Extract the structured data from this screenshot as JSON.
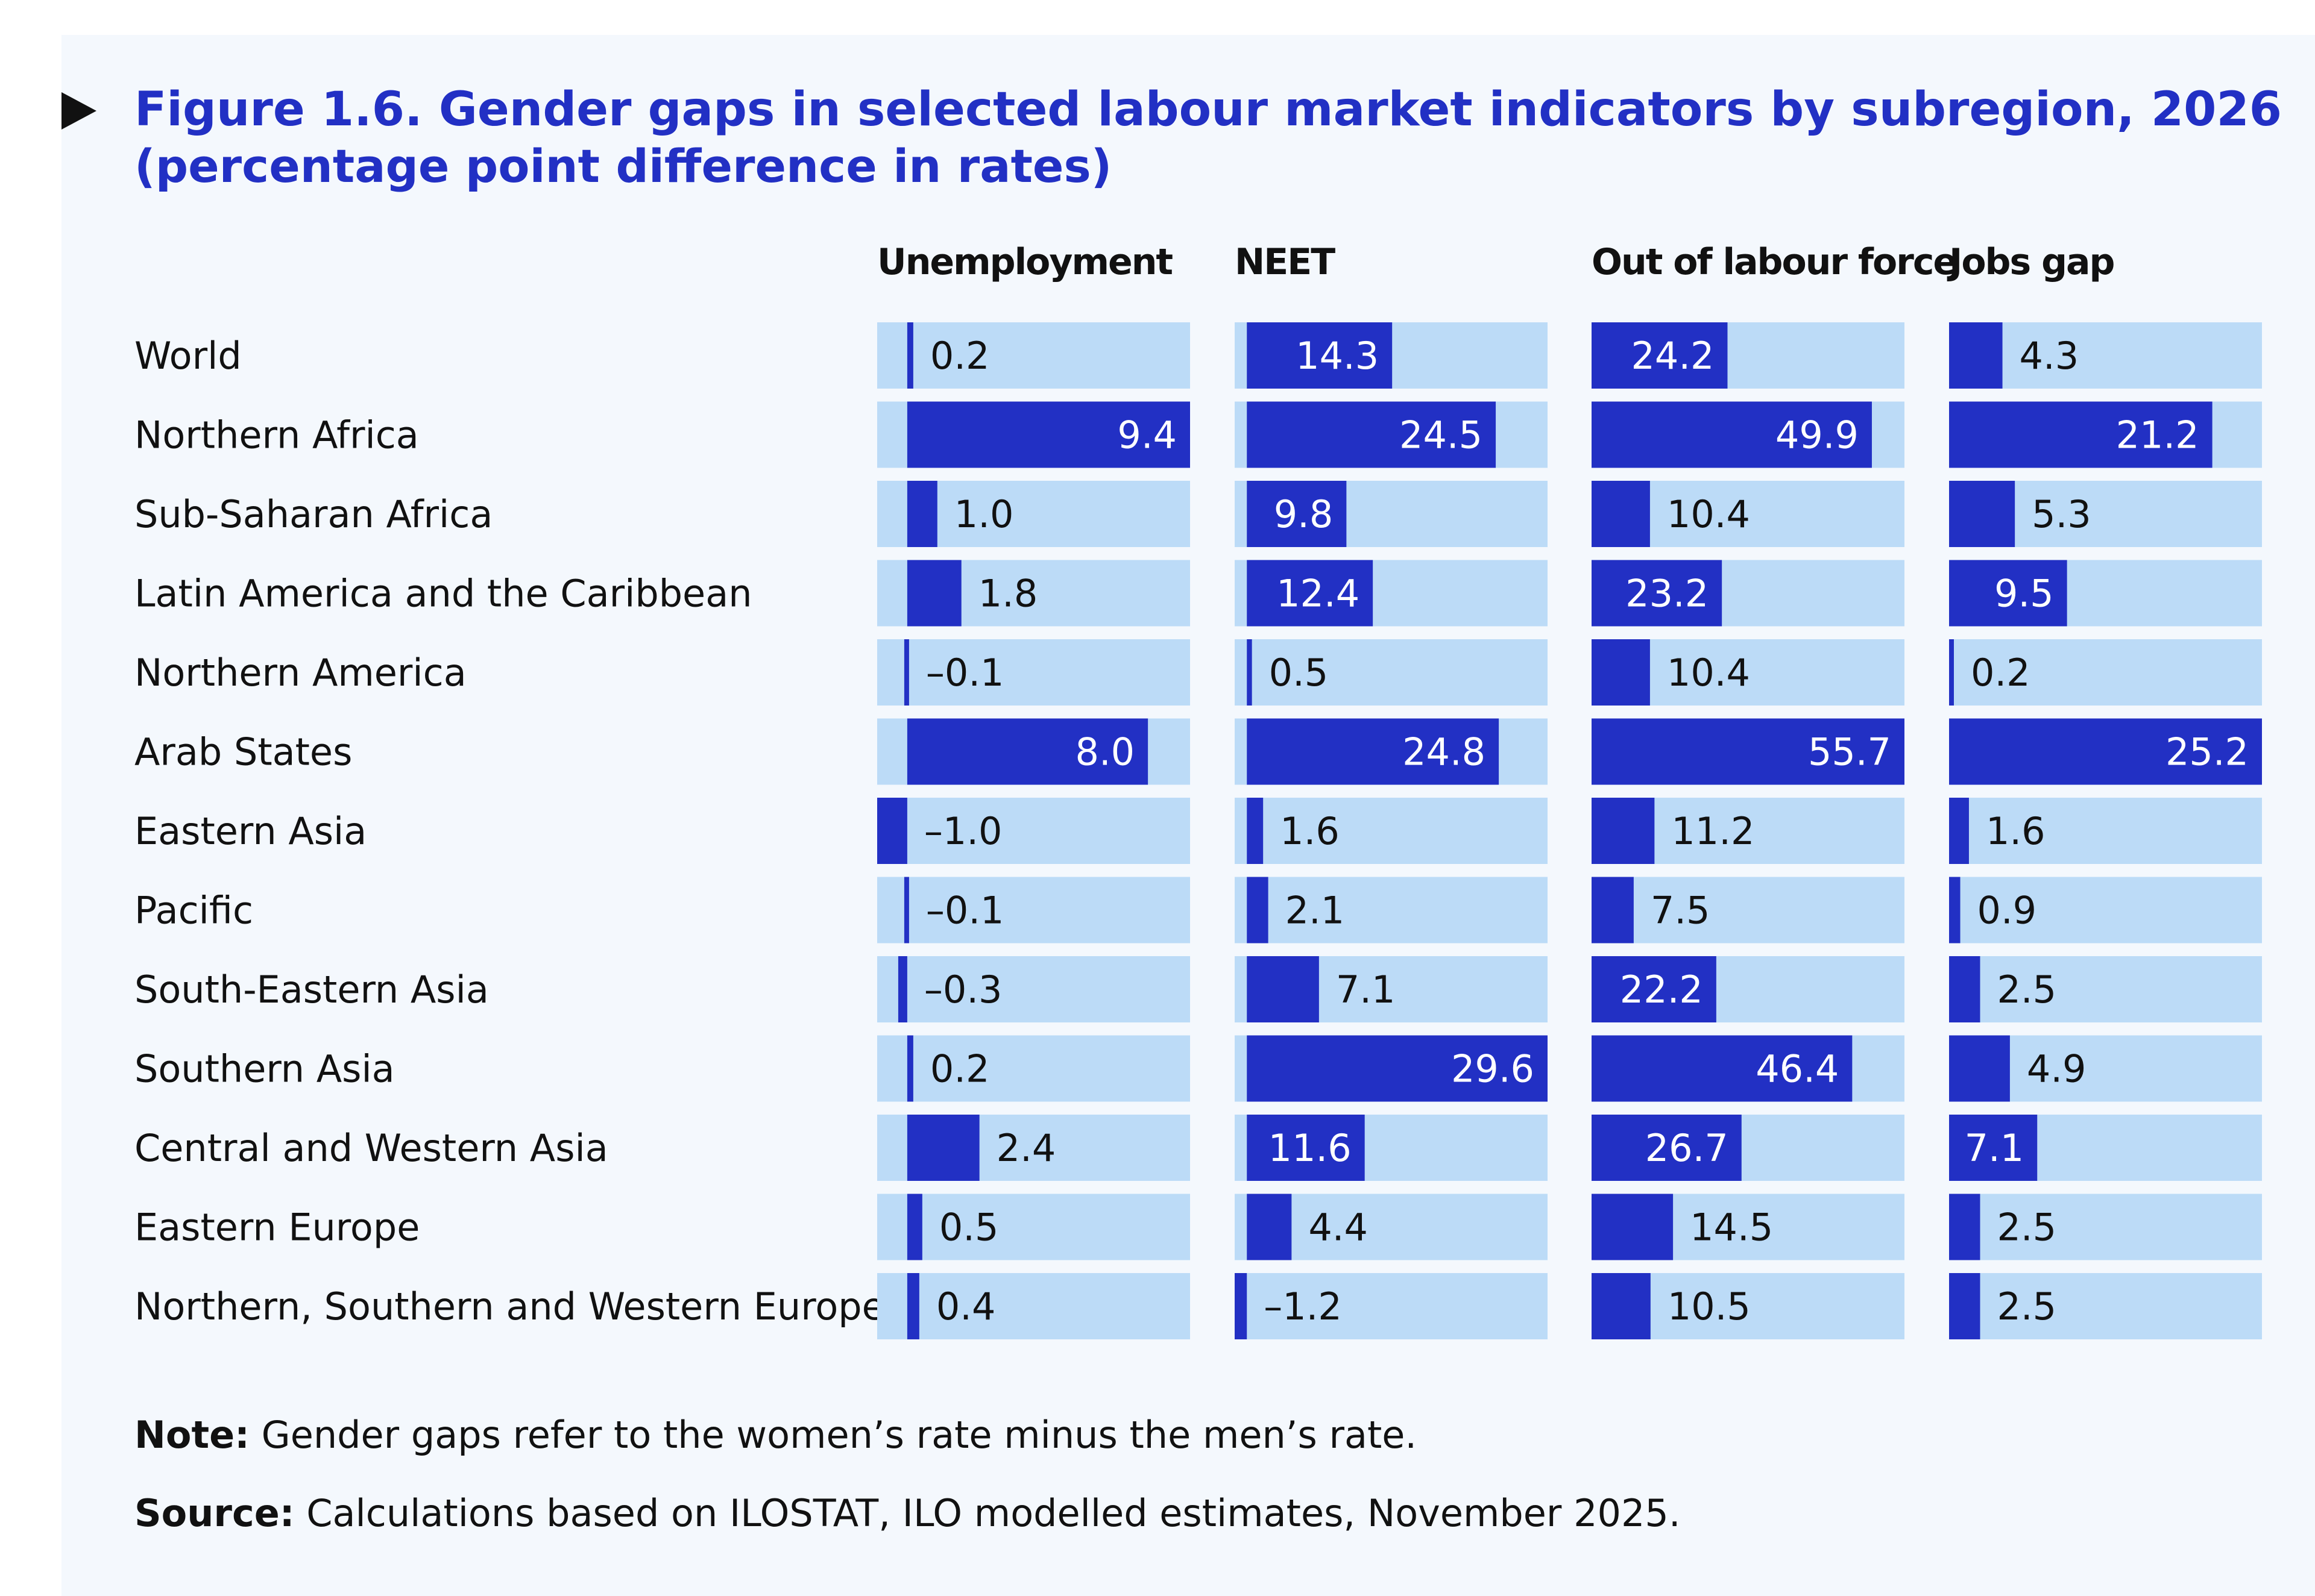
{
  "figure": {
    "title": "Figure 1.6. Gender gaps in selected labour market indicators by subregion, 2026",
    "subtitle": "(percentage point difference in rates)"
  },
  "notes": {
    "note_label": "Note:",
    "note_text": " Gender gaps refer to the women’s rate minus the men’s rate.",
    "source_label": "Source:",
    "source_text": " Calculations based on ILOSTAT, ILO modelled estimates, November 2025."
  },
  "colors": {
    "bar_fill": "#2230c4",
    "track_fill": "#bcdbf7",
    "title": "#2230c4",
    "text": "#111111",
    "label_on_bar": "#ffffff"
  },
  "chart_data": {
    "type": "bar",
    "orientation": "horizontal",
    "layout": "small-multiples",
    "title": "Figure 1.6. Gender gaps in selected labour market indicators by subregion, 2026",
    "ylabel": "(percentage point difference in rates)",
    "categories": [
      "World",
      "Northern Africa",
      "Sub-Saharan Africa",
      "Latin America and the Caribbean",
      "Northern America",
      "Arab States",
      "Eastern Asia",
      "Pacific",
      "South-Eastern Asia",
      "Southern Asia",
      "Central and Western Asia",
      "Eastern Europe",
      "Northern, Southern and Western Europe"
    ],
    "series": [
      {
        "name": "Unemployment",
        "xlim": [
          -1.0,
          9.4
        ],
        "values": [
          0.2,
          9.4,
          1.0,
          1.8,
          -0.1,
          8.0,
          -1.0,
          -0.1,
          -0.3,
          0.2,
          2.4,
          0.5,
          0.4
        ],
        "labels": [
          "0.2",
          "9.4",
          "1.0",
          "1.8",
          "–0.1",
          "8.0",
          "–1.0",
          "–0.1",
          "–0.3",
          "0.2",
          "2.4",
          "0.5",
          "0.4"
        ]
      },
      {
        "name": "NEET",
        "xlim": [
          -1.2,
          29.6
        ],
        "values": [
          14.3,
          24.5,
          9.8,
          12.4,
          0.5,
          24.8,
          1.6,
          2.1,
          7.1,
          29.6,
          11.6,
          4.4,
          -1.2
        ],
        "labels": [
          "14.3",
          "24.5",
          "9.8",
          "12.4",
          "0.5",
          "24.8",
          "1.6",
          "2.1",
          "7.1",
          "29.6",
          "11.6",
          "4.4",
          "–1.2"
        ]
      },
      {
        "name": "Out of labour force",
        "xlim": [
          0,
          55.7
        ],
        "values": [
          24.2,
          49.9,
          10.4,
          23.2,
          10.4,
          55.7,
          11.2,
          7.5,
          22.2,
          46.4,
          26.7,
          14.5,
          10.5
        ],
        "labels": [
          "24.2",
          "49.9",
          "10.4",
          "23.2",
          "10.4",
          "55.7",
          "11.2",
          "7.5",
          "22.2",
          "46.4",
          "26.7",
          "14.5",
          "10.5"
        ]
      },
      {
        "name": "Jobs gap",
        "xlim": [
          0,
          25.2
        ],
        "values": [
          4.3,
          21.2,
          5.3,
          9.5,
          0.2,
          25.2,
          1.6,
          0.9,
          2.5,
          4.9,
          7.1,
          2.5,
          2.5
        ],
        "labels": [
          "4.3",
          "21.2",
          "5.3",
          "9.5",
          "0.2",
          "25.2",
          "1.6",
          "0.9",
          "2.5",
          "4.9",
          "7.1",
          "2.5",
          "2.5"
        ]
      }
    ]
  }
}
